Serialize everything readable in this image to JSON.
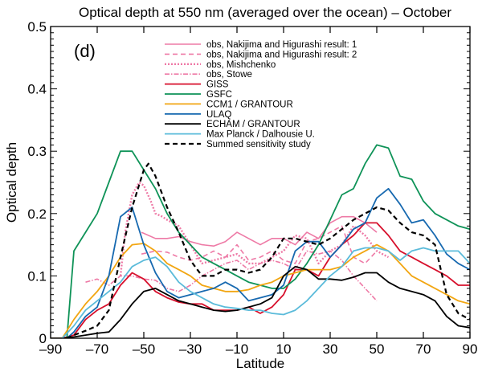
{
  "chart_data": {
    "type": "line",
    "title": "Optical depth at 550 nm (averaged over the ocean) – October",
    "panel_label": "(d)",
    "xlabel": "Latitude",
    "ylabel": "Optical depth",
    "xlim": [
      -90,
      90
    ],
    "ylim": [
      0,
      0.5
    ],
    "xticks": [
      -90,
      -70,
      -50,
      -30,
      -10,
      10,
      30,
      50,
      70,
      90
    ],
    "xtick_labels": [
      "–90",
      "–70",
      "–50",
      "–30",
      "–10",
      "10",
      "30",
      "50",
      "70",
      "90"
    ],
    "yticks": [
      0,
      0.1,
      0.2,
      0.3,
      0.4,
      0.5
    ],
    "ytick_labels": [
      "0",
      "0.1",
      "0.2",
      "0.3",
      "0.4",
      "0.5"
    ],
    "legend_position": "top-right",
    "series": [
      {
        "name": "obs, Nakijima and Higurashi result: 1",
        "color": "#ee7aa6",
        "dash": "solid",
        "width": 1.6,
        "x": [
          -51,
          -45,
          -40,
          -35,
          -30,
          -25,
          -20,
          -15,
          -10,
          -5,
          0,
          5,
          10,
          15,
          20,
          25,
          30,
          35,
          40,
          45,
          50
        ],
        "y": [
          0.17,
          0.16,
          0.16,
          0.163,
          0.155,
          0.15,
          0.148,
          0.155,
          0.17,
          0.16,
          0.15,
          0.16,
          0.16,
          0.15,
          0.17,
          0.16,
          0.185,
          0.195,
          0.195,
          0.185,
          0.17
        ]
      },
      {
        "name": "obs, Nakijima and Higurashi result: 2",
        "color": "#ee7aa6",
        "dash": "6,4",
        "width": 1.6,
        "x": [
          -51,
          -45,
          -40,
          -35,
          -30,
          -25,
          -20,
          -15,
          -10,
          -5,
          0,
          5,
          10,
          15,
          20,
          25,
          30,
          35,
          40,
          45,
          50
        ],
        "y": [
          0.135,
          0.14,
          0.138,
          0.13,
          0.125,
          0.13,
          0.14,
          0.13,
          0.15,
          0.125,
          0.13,
          0.14,
          0.125,
          0.12,
          0.155,
          0.16,
          0.17,
          0.18,
          0.13,
          0.12,
          0.14
        ]
      },
      {
        "name": "obs, Mishchenko",
        "color": "#ee7aa6",
        "dash": "2,2",
        "width": 2.4,
        "x": [
          -60,
          -58,
          -55,
          -52,
          -50,
          -47,
          -45,
          -42,
          -40,
          -35,
          -30,
          -25,
          -20,
          -15,
          -10,
          -5,
          0,
          5,
          10,
          15,
          20,
          25,
          30,
          35,
          40,
          45,
          50,
          55
        ],
        "y": [
          0.1,
          0.17,
          0.23,
          0.25,
          0.245,
          0.22,
          0.2,
          0.195,
          0.19,
          0.18,
          0.15,
          0.12,
          0.125,
          0.13,
          0.135,
          0.12,
          0.12,
          0.13,
          0.14,
          0.165,
          0.16,
          0.12,
          0.14,
          0.15,
          0.18,
          0.165,
          0.14,
          0.13
        ]
      },
      {
        "name": "obs, Stowe",
        "color": "#ee7aa6",
        "dash": "6,2,1.5,2",
        "width": 1.6,
        "x": [
          -75,
          -70,
          -65,
          -60,
          -55,
          -50,
          -45,
          -40,
          -35,
          -30,
          -25,
          -20,
          -15,
          -10,
          -5,
          0,
          5,
          10,
          15,
          20,
          25,
          30,
          35,
          40,
          45,
          50
        ],
        "y": [
          0.09,
          0.095,
          0.085,
          0.1,
          0.1,
          0.095,
          0.093,
          0.08,
          0.075,
          0.085,
          0.1,
          0.11,
          0.12,
          0.125,
          0.11,
          0.12,
          0.125,
          0.12,
          0.11,
          0.14,
          0.135,
          0.14,
          0.125,
          0.1,
          0.08,
          0.06
        ]
      },
      {
        "name": "GISS",
        "color": "#d7102c",
        "dash": "solid",
        "width": 1.8,
        "x": [
          -85,
          -80,
          -75,
          -70,
          -65,
          -60,
          -55,
          -50,
          -45,
          -40,
          -35,
          -30,
          -25,
          -20,
          -15,
          -10,
          -5,
          0,
          5,
          10,
          15,
          20,
          25,
          30,
          35,
          40,
          45,
          50,
          55,
          60,
          65,
          70,
          75,
          80,
          85,
          90
        ],
        "y": [
          0,
          0.005,
          0.03,
          0.045,
          0.055,
          0.085,
          0.105,
          0.095,
          0.075,
          0.065,
          0.058,
          0.055,
          0.055,
          0.045,
          0.045,
          0.045,
          0.05,
          0.04,
          0.05,
          0.07,
          0.11,
          0.11,
          0.1,
          0.13,
          0.15,
          0.165,
          0.185,
          0.185,
          0.165,
          0.14,
          0.13,
          0.12,
          0.11,
          0.1,
          0.085,
          0.085
        ]
      },
      {
        "name": "GSFC",
        "color": "#0f9358",
        "dash": "solid",
        "width": 1.8,
        "x": [
          -85,
          -83,
          -80,
          -75,
          -70,
          -65,
          -60,
          -55,
          -50,
          -45,
          -40,
          -35,
          -30,
          -25,
          -20,
          -15,
          -10,
          -5,
          0,
          5,
          10,
          15,
          20,
          25,
          30,
          35,
          40,
          45,
          50,
          55,
          60,
          65,
          70,
          75,
          80,
          85,
          90
        ],
        "y": [
          0,
          0.0,
          0.14,
          0.17,
          0.2,
          0.25,
          0.3,
          0.3,
          0.27,
          0.24,
          0.2,
          0.17,
          0.15,
          0.13,
          0.12,
          0.11,
          0.1,
          0.09,
          0.085,
          0.08,
          0.08,
          0.095,
          0.12,
          0.15,
          0.19,
          0.23,
          0.24,
          0.28,
          0.31,
          0.305,
          0.26,
          0.255,
          0.22,
          0.2,
          0.19,
          0.18,
          0.175
        ]
      },
      {
        "name": "CCM1 / GRANTOUR",
        "color": "#f2a612",
        "dash": "solid",
        "width": 1.8,
        "x": [
          -90,
          -85,
          -80,
          -75,
          -70,
          -65,
          -60,
          -55,
          -50,
          -45,
          -40,
          -35,
          -30,
          -25,
          -20,
          -15,
          -10,
          -5,
          0,
          5,
          10,
          15,
          20,
          25,
          30,
          35,
          40,
          45,
          50,
          55,
          60,
          65,
          70,
          75,
          80,
          85,
          90
        ],
        "y": [
          0,
          0,
          0.03,
          0.055,
          0.075,
          0.1,
          0.13,
          0.15,
          0.152,
          0.14,
          0.12,
          0.11,
          0.1,
          0.085,
          0.08,
          0.075,
          0.075,
          0.078,
          0.085,
          0.09,
          0.1,
          0.105,
          0.11,
          0.11,
          0.11,
          0.115,
          0.13,
          0.14,
          0.15,
          0.14,
          0.12,
          0.1,
          0.09,
          0.08,
          0.07,
          0.06,
          0.055
        ]
      },
      {
        "name": "ULAQ",
        "color": "#1769b0",
        "dash": "solid",
        "width": 1.8,
        "x": [
          -83,
          -80,
          -75,
          -70,
          -65,
          -60,
          -55,
          -50,
          -45,
          -40,
          -35,
          -30,
          -25,
          -20,
          -15,
          -10,
          -5,
          0,
          5,
          10,
          15,
          20,
          25,
          30,
          35,
          40,
          45,
          50,
          55,
          60,
          65,
          70,
          75,
          80,
          85,
          90
        ],
        "y": [
          0,
          0.01,
          0.035,
          0.05,
          0.1,
          0.195,
          0.21,
          0.15,
          0.105,
          0.075,
          0.065,
          0.07,
          0.075,
          0.08,
          0.09,
          0.08,
          0.06,
          0.065,
          0.07,
          0.085,
          0.14,
          0.155,
          0.155,
          0.13,
          0.15,
          0.175,
          0.185,
          0.225,
          0.24,
          0.215,
          0.185,
          0.19,
          0.165,
          0.135,
          0.12,
          0.11
        ]
      },
      {
        "name": "ECHAM / GRANTOUR",
        "color": "#000000",
        "dash": "solid",
        "width": 1.8,
        "x": [
          -90,
          -85,
          -80,
          -75,
          -70,
          -65,
          -60,
          -55,
          -50,
          -45,
          -40,
          -35,
          -30,
          -25,
          -20,
          -15,
          -10,
          -5,
          0,
          5,
          10,
          15,
          20,
          25,
          30,
          35,
          40,
          45,
          50,
          55,
          60,
          65,
          70,
          75,
          80,
          85,
          90
        ],
        "y": [
          0,
          0,
          0.002,
          0.005,
          0.008,
          0.01,
          0.03,
          0.055,
          0.075,
          0.08,
          0.07,
          0.06,
          0.055,
          0.05,
          0.045,
          0.043,
          0.045,
          0.05,
          0.055,
          0.065,
          0.1,
          0.115,
          0.11,
          0.095,
          0.095,
          0.093,
          0.098,
          0.105,
          0.105,
          0.09,
          0.08,
          0.075,
          0.07,
          0.06,
          0.035,
          0.02,
          0.017
        ]
      },
      {
        "name": "Max Planck / Dalhousie U.",
        "color": "#5bbbda",
        "dash": "solid",
        "width": 1.8,
        "x": [
          -85,
          -80,
          -75,
          -70,
          -65,
          -60,
          -55,
          -50,
          -45,
          -40,
          -35,
          -30,
          -25,
          -20,
          -15,
          -10,
          -5,
          0,
          5,
          10,
          15,
          20,
          25,
          30,
          35,
          40,
          45,
          50,
          55,
          60,
          65,
          70,
          75,
          80,
          85,
          90
        ],
        "y": [
          0,
          0.02,
          0.045,
          0.06,
          0.075,
          0.09,
          0.115,
          0.125,
          0.13,
          0.115,
          0.09,
          0.075,
          0.065,
          0.055,
          0.05,
          0.048,
          0.045,
          0.045,
          0.04,
          0.038,
          0.045,
          0.06,
          0.08,
          0.1,
          0.115,
          0.14,
          0.145,
          0.145,
          0.14,
          0.125,
          0.14,
          0.145,
          0.14,
          0.14,
          0.14,
          0.12
        ]
      },
      {
        "name": "Summed sensitivity study",
        "color": "#000000",
        "dash": "6,4",
        "width": 2.2,
        "x": [
          -83,
          -80,
          -75,
          -70,
          -65,
          -60,
          -55,
          -50,
          -48,
          -45,
          -40,
          -35,
          -30,
          -25,
          -20,
          -15,
          -10,
          -5,
          0,
          5,
          10,
          15,
          20,
          25,
          30,
          35,
          40,
          45,
          50,
          55,
          60,
          65,
          70,
          75,
          80,
          85,
          90
        ],
        "y": [
          0,
          0.005,
          0.012,
          0.02,
          0.045,
          0.13,
          0.21,
          0.27,
          0.28,
          0.26,
          0.21,
          0.17,
          0.125,
          0.1,
          0.1,
          0.11,
          0.11,
          0.105,
          0.11,
          0.13,
          0.16,
          0.16,
          0.155,
          0.15,
          0.16,
          0.175,
          0.19,
          0.2,
          0.21,
          0.205,
          0.185,
          0.17,
          0.165,
          0.15,
          0.07,
          0.04,
          0.03
        ]
      }
    ]
  }
}
